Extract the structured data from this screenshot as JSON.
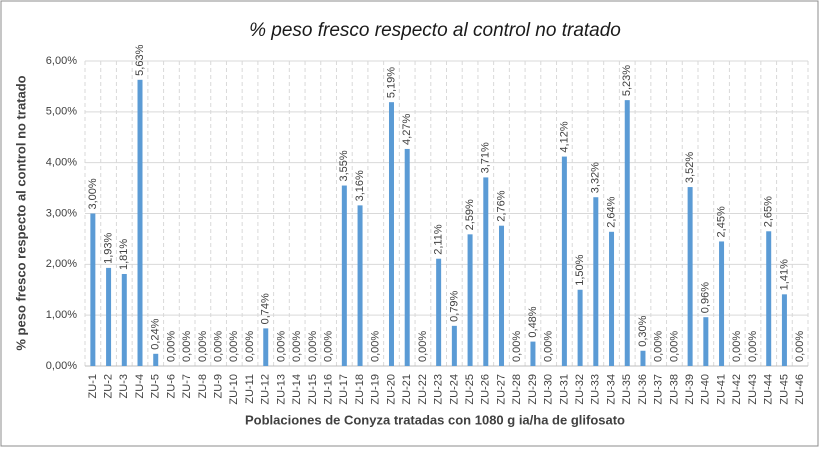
{
  "chart_data": {
    "type": "bar",
    "title": "% peso fresco respecto al control no tratado",
    "x_label": "Poblaciones de Conyza tratadas con 1080 g ia/ha de glifosato",
    "y_label": "% peso fresco respecto al control no tratado",
    "categories": [
      "ZU-1",
      "ZU-2",
      "ZU-3",
      "ZU-4",
      "ZU-5",
      "ZU-6",
      "ZU-7",
      "ZU-8",
      "ZU-9",
      "ZU-10",
      "ZU-11",
      "ZU-12",
      "ZU-13",
      "ZU-14",
      "ZU-15",
      "ZU-16",
      "ZU-17",
      "ZU-18",
      "ZU-19",
      "ZU-20",
      "ZU-21",
      "ZU-22",
      "ZU-23",
      "ZU-24",
      "ZU-25",
      "ZU-26",
      "ZU-27",
      "ZU-28",
      "ZU-29",
      "ZU-30",
      "ZU-31",
      "ZU-32",
      "ZU-33",
      "ZU-34",
      "ZU-35",
      "ZU-36",
      "ZU-37",
      "ZU-38",
      "ZU-39",
      "ZU-40",
      "ZU-41",
      "ZU-42",
      "ZU-43",
      "ZU-44",
      "ZU-45",
      "ZU-46"
    ],
    "values": [
      3.0,
      1.93,
      1.81,
      5.63,
      0.24,
      0,
      0,
      0,
      0,
      0,
      0,
      0.74,
      0,
      0,
      0,
      0,
      3.55,
      3.16,
      0,
      5.19,
      4.27,
      0,
      2.11,
      0.79,
      2.59,
      3.71,
      2.76,
      0,
      0.48,
      0,
      4.12,
      1.5,
      3.32,
      2.64,
      5.23,
      0.3,
      0,
      0,
      3.52,
      0.96,
      2.45,
      0,
      0,
      2.65,
      1.41,
      0
    ],
    "value_labels": [
      "3,00%",
      "1,93%",
      "1,81%",
      "5,63%",
      "0,24%",
      "0,00%",
      "0,00%",
      "0,00%",
      "0,00%",
      "0,00%",
      "0,00%",
      "0,74%",
      "0,00%",
      "0,00%",
      "0,00%",
      "0,00%",
      "3,55%",
      "3,16%",
      "0,00%",
      "5,19%",
      "4,27%",
      "0,00%",
      "2,11%",
      "0,79%",
      "2,59%",
      "3,71%",
      "2,76%",
      "0,00%",
      "0,48%",
      "0,00%",
      "4,12%",
      "1,50%",
      "3,32%",
      "2,64%",
      "5,23%",
      "0,30%",
      "0,00%",
      "0,00%",
      "3,52%",
      "0,96%",
      "2,45%",
      "0,00%",
      "0,00%",
      "2,65%",
      "1,41%",
      "0,00%"
    ],
    "color": "#5b9bd5",
    "ylim": [
      0,
      6
    ],
    "yticks": [
      {
        "value": 0,
        "label": "0,00%"
      },
      {
        "value": 1,
        "label": "1,00%"
      },
      {
        "value": 2,
        "label": "2,00%"
      },
      {
        "value": 3,
        "label": "3,00%"
      },
      {
        "value": 4,
        "label": "4,00%"
      },
      {
        "value": 5,
        "label": "5,00%"
      },
      {
        "value": 6,
        "label": "6,00%"
      }
    ],
    "grid": true
  }
}
